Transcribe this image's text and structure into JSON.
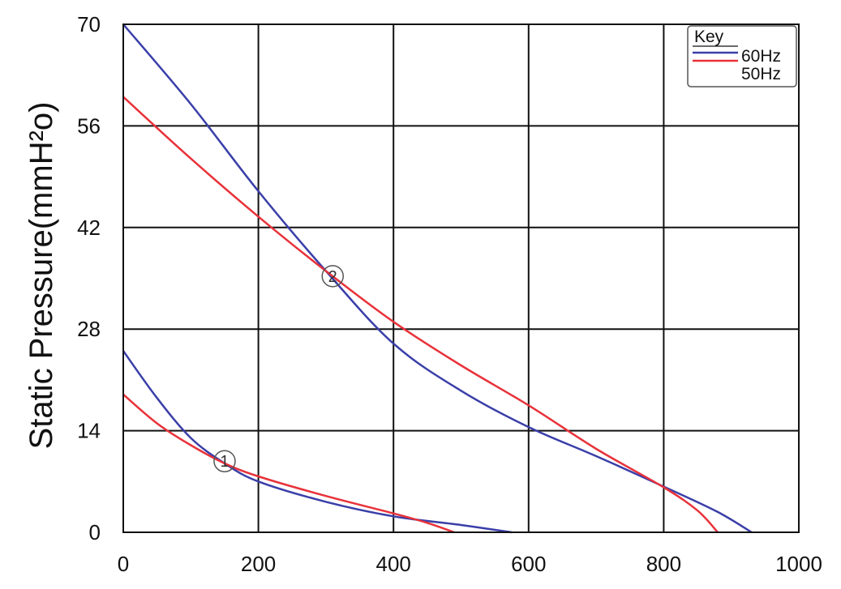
{
  "chart_data": {
    "type": "line",
    "title": "",
    "xlabel": "",
    "ylabel": "Static Pressure(mmH²o)",
    "xlim": [
      0,
      1000
    ],
    "ylim": [
      0,
      70
    ],
    "x_ticks": [
      "0",
      "200",
      "400",
      "600",
      "800",
      "1000"
    ],
    "y_ticks": [
      "0",
      "14",
      "28",
      "42",
      "56",
      "70"
    ],
    "grid": true,
    "legend": {
      "title": "Key",
      "position": "top-right"
    },
    "series": [
      {
        "name": "60Hz",
        "curve": "2",
        "color": "#3a3fa8",
        "points": [
          [
            0,
            70
          ],
          [
            100,
            59
          ],
          [
            200,
            47
          ],
          [
            300,
            36
          ],
          [
            400,
            26
          ],
          [
            500,
            19.5
          ],
          [
            600,
            14.5
          ],
          [
            700,
            10.5
          ],
          [
            800,
            6.3
          ],
          [
            880,
            2.8
          ],
          [
            930,
            0
          ]
        ]
      },
      {
        "name": "50Hz",
        "curve": "2",
        "color": "#e8323a",
        "points": [
          [
            0,
            60
          ],
          [
            100,
            51.5
          ],
          [
            200,
            43.5
          ],
          [
            300,
            36
          ],
          [
            400,
            29
          ],
          [
            500,
            23
          ],
          [
            600,
            17.5
          ],
          [
            700,
            11.5
          ],
          [
            800,
            6.2
          ],
          [
            850,
            3
          ],
          [
            880,
            0
          ]
        ]
      },
      {
        "name": "60Hz",
        "curve": "1",
        "color": "#3a3fa8",
        "points": [
          [
            0,
            25
          ],
          [
            50,
            18.5
          ],
          [
            100,
            13
          ],
          [
            150,
            9.5
          ],
          [
            200,
            7
          ],
          [
            300,
            4.2
          ],
          [
            400,
            2.2
          ],
          [
            500,
            1
          ],
          [
            575,
            0
          ]
        ]
      },
      {
        "name": "50Hz",
        "curve": "1",
        "color": "#e8323a",
        "points": [
          [
            0,
            19
          ],
          [
            50,
            15
          ],
          [
            100,
            12
          ],
          [
            150,
            9.5
          ],
          [
            200,
            7.7
          ],
          [
            300,
            5
          ],
          [
            400,
            2.6
          ],
          [
            450,
            1.3
          ],
          [
            490,
            0
          ]
        ]
      }
    ],
    "annotations": [
      {
        "text": "1",
        "x": 150,
        "y": 9.8
      },
      {
        "text": "2",
        "x": 310,
        "y": 35.3
      }
    ]
  }
}
